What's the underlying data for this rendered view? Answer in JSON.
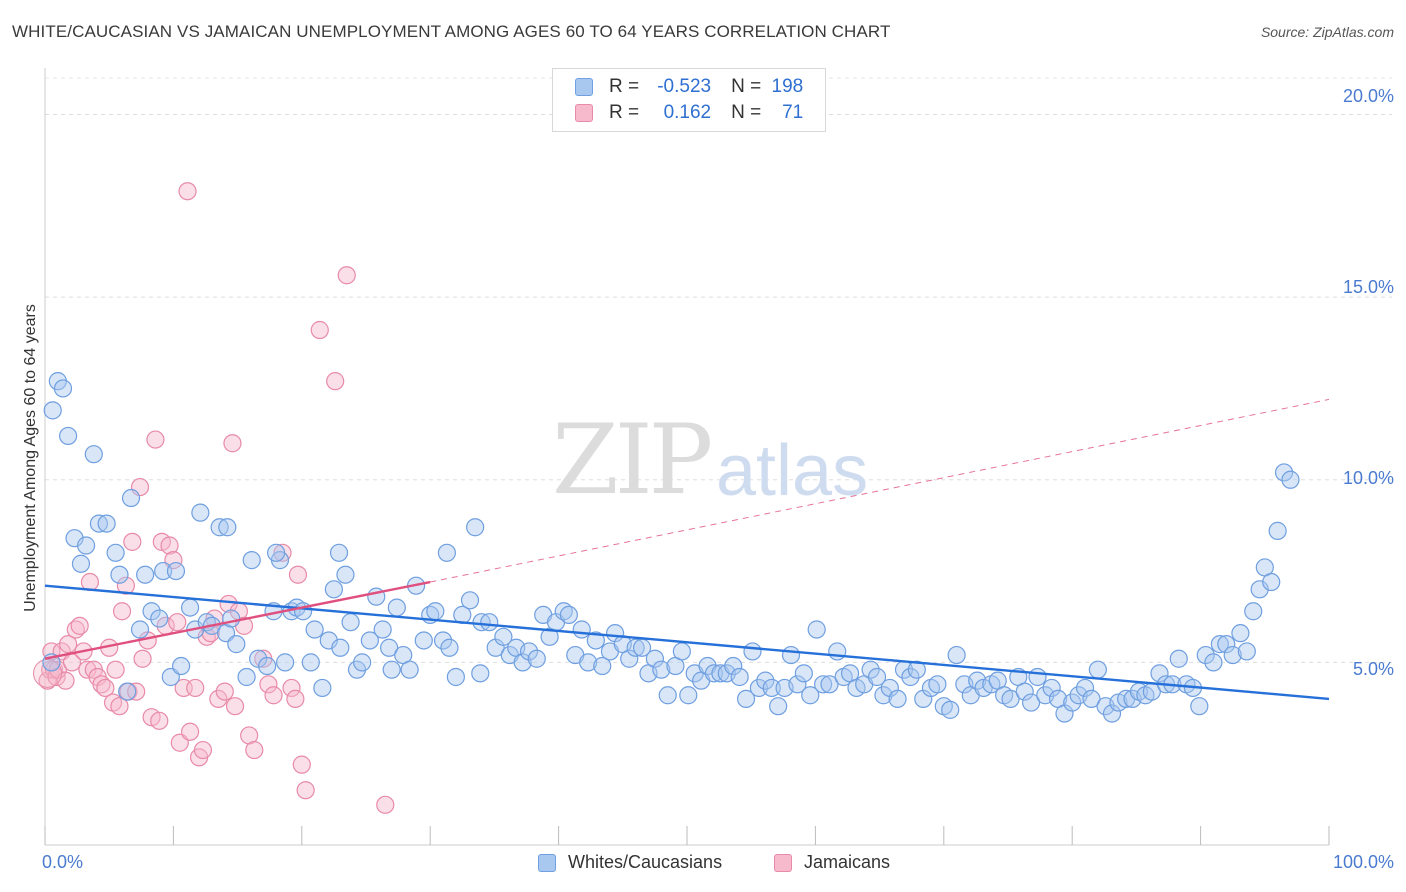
{
  "title": "WHITE/CAUCASIAN VS JAMAICAN UNEMPLOYMENT AMONG AGES 60 TO 64 YEARS CORRELATION CHART",
  "source": "Source: ZipAtlas.com",
  "watermark": {
    "zip": "ZIP",
    "atlas": "atlas"
  },
  "legend": {
    "r_label": "R =",
    "n_label": "N =",
    "rows": [
      {
        "name": "Whites/Caucasians",
        "r": "-0.523",
        "n": "198"
      },
      {
        "name": "Jamaicans",
        "r": "0.162",
        "n": "71"
      }
    ]
  },
  "colors": {
    "blue_fill": "#a9c8f0",
    "blue_stroke": "#6f9fe0",
    "blue_line": "#2670d9",
    "pink_fill": "#f7b9cc",
    "pink_stroke": "#e88aa8",
    "pink_line": "#e0507f",
    "tick_text": "#4a7bd0"
  },
  "chart_data": {
    "type": "scatter",
    "title": "WHITE/CAUCASIAN VS JAMAICAN UNEMPLOYMENT AMONG AGES 60 TO 64 YEARS CORRELATION CHART",
    "xlabel": "",
    "ylabel": "Unemployment Among Ages 60 to 64 years",
    "xlim": [
      0,
      100
    ],
    "ylim": [
      0,
      21
    ],
    "x_tick_labels": [
      "0.0%",
      "100.0%"
    ],
    "y_ticks": [
      5,
      10,
      15,
      20
    ],
    "y_tick_labels": [
      "5.0%",
      "10.0%",
      "15.0%",
      "20.0%"
    ],
    "grid": true,
    "series": [
      {
        "name": "Whites/Caucasians",
        "trend": {
          "x0": 0,
          "y0": 7.1,
          "x1": 100,
          "y1": 4.0
        },
        "points": [
          [
            0.5,
            5.0
          ],
          [
            0.6,
            11.9
          ],
          [
            1.0,
            12.7
          ],
          [
            1.4,
            12.5
          ],
          [
            1.8,
            11.2
          ],
          [
            2.3,
            8.4
          ],
          [
            2.8,
            7.7
          ],
          [
            3.2,
            8.2
          ],
          [
            3.8,
            10.7
          ],
          [
            4.2,
            8.8
          ],
          [
            4.8,
            8.8
          ],
          [
            5.5,
            8.0
          ],
          [
            5.8,
            7.4
          ],
          [
            6.4,
            4.2
          ],
          [
            6.7,
            9.5
          ],
          [
            7.4,
            5.9
          ],
          [
            7.8,
            7.4
          ],
          [
            8.3,
            6.4
          ],
          [
            8.9,
            6.2
          ],
          [
            9.2,
            7.5
          ],
          [
            9.8,
            4.6
          ],
          [
            10.2,
            7.5
          ],
          [
            10.6,
            4.9
          ],
          [
            11.3,
            6.5
          ],
          [
            11.7,
            5.9
          ],
          [
            12.1,
            9.1
          ],
          [
            12.6,
            6.1
          ],
          [
            13.0,
            6.0
          ],
          [
            13.6,
            8.7
          ],
          [
            14.1,
            5.8
          ],
          [
            14.5,
            6.2
          ],
          [
            14.9,
            5.5
          ],
          [
            15.7,
            4.6
          ],
          [
            16.1,
            7.8
          ],
          [
            16.6,
            5.1
          ],
          [
            17.3,
            4.9
          ],
          [
            17.8,
            6.4
          ],
          [
            18.3,
            7.8
          ],
          [
            18.7,
            5.0
          ],
          [
            19.2,
            6.4
          ],
          [
            19.6,
            6.5
          ],
          [
            20.1,
            6.4
          ],
          [
            20.7,
            5.0
          ],
          [
            21.0,
            5.9
          ],
          [
            21.6,
            4.3
          ],
          [
            22.1,
            5.6
          ],
          [
            22.5,
            7.0
          ],
          [
            23.0,
            5.4
          ],
          [
            23.4,
            7.4
          ],
          [
            23.8,
            6.1
          ],
          [
            24.3,
            4.8
          ],
          [
            24.7,
            5.0
          ],
          [
            25.3,
            5.6
          ],
          [
            25.8,
            6.8
          ],
          [
            26.3,
            5.9
          ],
          [
            26.8,
            5.4
          ],
          [
            27.4,
            6.5
          ],
          [
            27.9,
            5.2
          ],
          [
            28.4,
            4.8
          ],
          [
            28.9,
            7.1
          ],
          [
            29.5,
            5.6
          ],
          [
            30.0,
            6.3
          ],
          [
            30.4,
            6.4
          ],
          [
            31.0,
            5.6
          ],
          [
            31.5,
            5.4
          ],
          [
            32.0,
            4.6
          ],
          [
            32.5,
            6.3
          ],
          [
            33.1,
            6.7
          ],
          [
            33.5,
            8.7
          ],
          [
            34.0,
            6.1
          ],
          [
            34.6,
            6.1
          ],
          [
            35.1,
            5.4
          ],
          [
            35.7,
            5.7
          ],
          [
            36.2,
            5.2
          ],
          [
            36.7,
            5.4
          ],
          [
            37.2,
            5.0
          ],
          [
            37.7,
            5.3
          ],
          [
            38.3,
            5.1
          ],
          [
            38.8,
            6.3
          ],
          [
            39.3,
            5.7
          ],
          [
            39.8,
            6.1
          ],
          [
            40.4,
            6.4
          ],
          [
            40.8,
            6.3
          ],
          [
            41.3,
            5.2
          ],
          [
            41.8,
            5.9
          ],
          [
            42.3,
            5.0
          ],
          [
            42.9,
            5.6
          ],
          [
            43.4,
            4.9
          ],
          [
            44.0,
            5.3
          ],
          [
            44.4,
            5.8
          ],
          [
            45.0,
            5.5
          ],
          [
            45.5,
            5.1
          ],
          [
            46.0,
            5.4
          ],
          [
            46.5,
            5.4
          ],
          [
            47.0,
            4.7
          ],
          [
            47.5,
            5.1
          ],
          [
            48.0,
            4.8
          ],
          [
            48.5,
            4.1
          ],
          [
            49.1,
            4.9
          ],
          [
            49.6,
            5.3
          ],
          [
            50.1,
            4.1
          ],
          [
            50.6,
            4.7
          ],
          [
            51.1,
            4.5
          ],
          [
            51.6,
            4.9
          ],
          [
            52.1,
            4.7
          ],
          [
            52.6,
            4.7
          ],
          [
            53.1,
            4.7
          ],
          [
            53.6,
            4.9
          ],
          [
            54.1,
            4.6
          ],
          [
            54.6,
            4.0
          ],
          [
            55.1,
            5.3
          ],
          [
            55.6,
            4.3
          ],
          [
            56.1,
            4.5
          ],
          [
            56.6,
            4.3
          ],
          [
            57.1,
            3.8
          ],
          [
            57.6,
            4.3
          ],
          [
            58.1,
            5.2
          ],
          [
            58.6,
            4.4
          ],
          [
            59.1,
            4.7
          ],
          [
            59.6,
            4.1
          ],
          [
            60.1,
            5.9
          ],
          [
            60.6,
            4.4
          ],
          [
            61.1,
            4.4
          ],
          [
            61.7,
            5.3
          ],
          [
            62.2,
            4.6
          ],
          [
            62.7,
            4.7
          ],
          [
            63.2,
            4.3
          ],
          [
            63.8,
            4.4
          ],
          [
            64.3,
            4.8
          ],
          [
            64.8,
            4.6
          ],
          [
            65.3,
            4.1
          ],
          [
            65.8,
            4.3
          ],
          [
            66.4,
            4.0
          ],
          [
            66.9,
            4.8
          ],
          [
            67.4,
            4.6
          ],
          [
            67.9,
            4.8
          ],
          [
            68.4,
            4.0
          ],
          [
            69.0,
            4.3
          ],
          [
            69.5,
            4.4
          ],
          [
            70.0,
            3.8
          ],
          [
            70.5,
            3.7
          ],
          [
            71.0,
            5.2
          ],
          [
            71.6,
            4.4
          ],
          [
            72.1,
            4.1
          ],
          [
            72.6,
            4.5
          ],
          [
            73.1,
            4.3
          ],
          [
            73.7,
            4.4
          ],
          [
            74.2,
            4.5
          ],
          [
            74.7,
            4.1
          ],
          [
            75.2,
            4.0
          ],
          [
            75.8,
            4.6
          ],
          [
            76.3,
            4.2
          ],
          [
            76.8,
            3.9
          ],
          [
            77.3,
            4.6
          ],
          [
            77.9,
            4.1
          ],
          [
            78.4,
            4.3
          ],
          [
            78.9,
            4.0
          ],
          [
            79.4,
            3.6
          ],
          [
            80.0,
            3.9
          ],
          [
            80.5,
            4.1
          ],
          [
            81.0,
            4.3
          ],
          [
            81.5,
            4.0
          ],
          [
            82.0,
            4.8
          ],
          [
            82.6,
            3.8
          ],
          [
            83.1,
            3.6
          ],
          [
            83.6,
            3.9
          ],
          [
            84.2,
            4.0
          ],
          [
            84.7,
            4.0
          ],
          [
            85.2,
            4.2
          ],
          [
            85.7,
            4.1
          ],
          [
            86.2,
            4.2
          ],
          [
            86.8,
            4.7
          ],
          [
            87.3,
            4.4
          ],
          [
            87.8,
            4.4
          ],
          [
            88.3,
            5.1
          ],
          [
            88.9,
            4.4
          ],
          [
            89.4,
            4.3
          ],
          [
            89.9,
            3.8
          ],
          [
            90.4,
            5.2
          ],
          [
            91.0,
            5.0
          ],
          [
            91.5,
            5.5
          ],
          [
            92.0,
            5.5
          ],
          [
            92.5,
            5.2
          ],
          [
            93.1,
            5.8
          ],
          [
            93.6,
            5.3
          ],
          [
            94.1,
            6.4
          ],
          [
            94.6,
            7.0
          ],
          [
            95.0,
            7.6
          ],
          [
            95.5,
            7.2
          ],
          [
            96.0,
            8.6
          ],
          [
            96.5,
            10.2
          ],
          [
            97.0,
            10.0
          ],
          [
            18.0,
            8.0
          ],
          [
            14.2,
            8.7
          ],
          [
            22.9,
            8.0
          ],
          [
            31.3,
            8.0
          ],
          [
            27.0,
            4.8
          ],
          [
            33.9,
            4.7
          ]
        ]
      },
      {
        "name": "Jamaicans",
        "trend": {
          "x0": 0,
          "y0": 5.1,
          "x1": 30,
          "y1": 7.2
        },
        "trend_extension": {
          "x0": 30,
          "y0": 7.2,
          "x1": 100,
          "y1": 12.2
        },
        "points": [
          [
            0.2,
            4.5
          ],
          [
            0.4,
            4.8
          ],
          [
            0.5,
            5.3
          ],
          [
            0.7,
            4.8
          ],
          [
            0.9,
            4.6
          ],
          [
            1.0,
            4.8
          ],
          [
            1.3,
            5.3
          ],
          [
            1.6,
            4.5
          ],
          [
            1.8,
            5.5
          ],
          [
            2.1,
            5.0
          ],
          [
            2.4,
            5.9
          ],
          [
            2.7,
            6.0
          ],
          [
            3.0,
            5.3
          ],
          [
            3.3,
            4.8
          ],
          [
            3.5,
            7.2
          ],
          [
            3.8,
            4.8
          ],
          [
            4.1,
            4.6
          ],
          [
            4.4,
            4.4
          ],
          [
            4.7,
            4.3
          ],
          [
            5.0,
            5.4
          ],
          [
            5.3,
            3.9
          ],
          [
            5.5,
            4.8
          ],
          [
            5.8,
            3.8
          ],
          [
            6.0,
            6.4
          ],
          [
            6.3,
            7.1
          ],
          [
            6.5,
            4.2
          ],
          [
            6.8,
            8.3
          ],
          [
            7.1,
            4.2
          ],
          [
            7.4,
            9.8
          ],
          [
            7.6,
            5.1
          ],
          [
            8.0,
            5.6
          ],
          [
            8.3,
            3.5
          ],
          [
            8.6,
            11.1
          ],
          [
            8.9,
            3.4
          ],
          [
            9.1,
            8.3
          ],
          [
            9.4,
            6.0
          ],
          [
            9.7,
            8.2
          ],
          [
            10.0,
            7.8
          ],
          [
            10.3,
            6.1
          ],
          [
            10.5,
            2.8
          ],
          [
            10.8,
            4.3
          ],
          [
            11.1,
            17.9
          ],
          [
            11.3,
            3.1
          ],
          [
            11.7,
            4.3
          ],
          [
            12.0,
            2.4
          ],
          [
            12.3,
            2.6
          ],
          [
            12.6,
            5.7
          ],
          [
            12.9,
            5.8
          ],
          [
            13.2,
            6.2
          ],
          [
            13.5,
            4.0
          ],
          [
            14.0,
            4.2
          ],
          [
            14.3,
            6.6
          ],
          [
            14.6,
            11.0
          ],
          [
            14.8,
            3.8
          ],
          [
            15.1,
            6.4
          ],
          [
            15.5,
            6.0
          ],
          [
            15.9,
            3.0
          ],
          [
            16.3,
            2.6
          ],
          [
            17.0,
            5.1
          ],
          [
            17.4,
            4.4
          ],
          [
            17.8,
            4.1
          ],
          [
            18.5,
            8.0
          ],
          [
            19.2,
            4.3
          ],
          [
            19.5,
            4.0
          ],
          [
            19.7,
            7.4
          ],
          [
            20.0,
            2.2
          ],
          [
            20.3,
            1.5
          ],
          [
            21.4,
            14.1
          ],
          [
            22.6,
            12.7
          ],
          [
            23.5,
            15.6
          ],
          [
            26.5,
            1.1
          ]
        ]
      }
    ]
  }
}
